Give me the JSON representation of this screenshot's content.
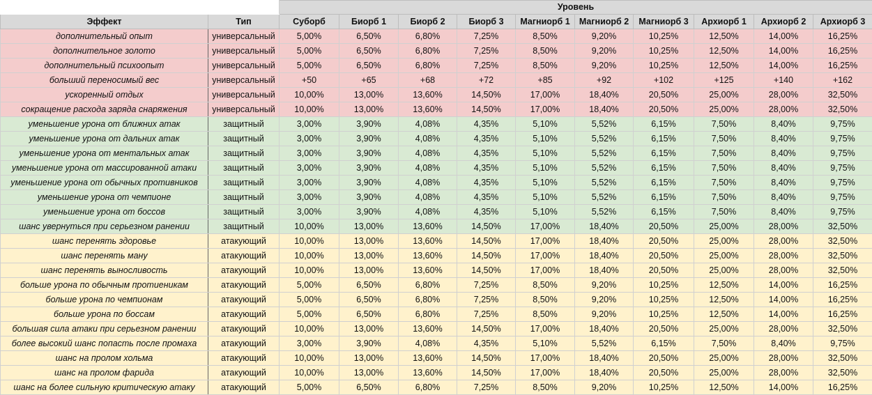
{
  "header": {
    "level_title": "Уровень",
    "effect_col": "Эффект",
    "type_col": "Тип",
    "levels": [
      "Суборб",
      "Биорб 1",
      "Биорб 2",
      "Биорб 3",
      "Магниорб 1",
      "Магниорб 2",
      "Магниорб 3",
      "Архиорб 1",
      "Архиорб 2",
      "Архиорб 3"
    ]
  },
  "colors": {
    "universal": "#f4cccc",
    "defensive": "#d9ead3",
    "attack": "#fff2cc",
    "header": "#d9d9d9"
  },
  "rows": [
    {
      "group": "universal",
      "effect": "дополнительный опыт",
      "type": "универсальный",
      "values": [
        "5,00%",
        "6,50%",
        "6,80%",
        "7,25%",
        "8,50%",
        "9,20%",
        "10,25%",
        "12,50%",
        "14,00%",
        "16,25%"
      ]
    },
    {
      "group": "universal",
      "effect": "дополнительное золото",
      "type": "универсальный",
      "values": [
        "5,00%",
        "6,50%",
        "6,80%",
        "7,25%",
        "8,50%",
        "9,20%",
        "10,25%",
        "12,50%",
        "14,00%",
        "16,25%"
      ]
    },
    {
      "group": "universal",
      "effect": "дополнительный психоопыт",
      "type": "универсальный",
      "values": [
        "5,00%",
        "6,50%",
        "6,80%",
        "7,25%",
        "8,50%",
        "9,20%",
        "10,25%",
        "12,50%",
        "14,00%",
        "16,25%"
      ]
    },
    {
      "group": "universal",
      "effect": "больший переносимый вес",
      "type": "универсальный",
      "values": [
        "+50",
        "+65",
        "+68",
        "+72",
        "+85",
        "+92",
        "+102",
        "+125",
        "+140",
        "+162"
      ]
    },
    {
      "group": "universal",
      "effect": "ускоренный отдых",
      "type": "универсальный",
      "values": [
        "10,00%",
        "13,00%",
        "13,60%",
        "14,50%",
        "17,00%",
        "18,40%",
        "20,50%",
        "25,00%",
        "28,00%",
        "32,50%"
      ]
    },
    {
      "group": "universal",
      "effect": "сокращение расхода заряда снаряжения",
      "type": "универсальный",
      "values": [
        "10,00%",
        "13,00%",
        "13,60%",
        "14,50%",
        "17,00%",
        "18,40%",
        "20,50%",
        "25,00%",
        "28,00%",
        "32,50%"
      ]
    },
    {
      "group": "defensive",
      "effect": "уменьшение урона от ближних атак",
      "type": "защитный",
      "values": [
        "3,00%",
        "3,90%",
        "4,08%",
        "4,35%",
        "5,10%",
        "5,52%",
        "6,15%",
        "7,50%",
        "8,40%",
        "9,75%"
      ]
    },
    {
      "group": "defensive",
      "effect": "уменьшение урона от дальних атак",
      "type": "защитный",
      "values": [
        "3,00%",
        "3,90%",
        "4,08%",
        "4,35%",
        "5,10%",
        "5,52%",
        "6,15%",
        "7,50%",
        "8,40%",
        "9,75%"
      ]
    },
    {
      "group": "defensive",
      "effect": "уменьшение урона от ментальных атак",
      "type": "защитный",
      "values": [
        "3,00%",
        "3,90%",
        "4,08%",
        "4,35%",
        "5,10%",
        "5,52%",
        "6,15%",
        "7,50%",
        "8,40%",
        "9,75%"
      ]
    },
    {
      "group": "defensive",
      "effect": "уменьшение урона от массированной атаки",
      "type": "защитный",
      "values": [
        "3,00%",
        "3,90%",
        "4,08%",
        "4,35%",
        "5,10%",
        "5,52%",
        "6,15%",
        "7,50%",
        "8,40%",
        "9,75%"
      ]
    },
    {
      "group": "defensive",
      "effect": "уменьшение урона от обычных противников",
      "type": "защитный",
      "values": [
        "3,00%",
        "3,90%",
        "4,08%",
        "4,35%",
        "5,10%",
        "5,52%",
        "6,15%",
        "7,50%",
        "8,40%",
        "9,75%"
      ]
    },
    {
      "group": "defensive",
      "effect": "уменьшение урона от чемпионе",
      "type": "защитный",
      "values": [
        "3,00%",
        "3,90%",
        "4,08%",
        "4,35%",
        "5,10%",
        "5,52%",
        "6,15%",
        "7,50%",
        "8,40%",
        "9,75%"
      ]
    },
    {
      "group": "defensive",
      "effect": "уменьшение урона от боссов",
      "type": "защитный",
      "values": [
        "3,00%",
        "3,90%",
        "4,08%",
        "4,35%",
        "5,10%",
        "5,52%",
        "6,15%",
        "7,50%",
        "8,40%",
        "9,75%"
      ]
    },
    {
      "group": "defensive",
      "effect": "шанс увернуться при серьезном ранении",
      "type": "защитный",
      "values": [
        "10,00%",
        "13,00%",
        "13,60%",
        "14,50%",
        "17,00%",
        "18,40%",
        "20,50%",
        "25,00%",
        "28,00%",
        "32,50%"
      ]
    },
    {
      "group": "attack",
      "effect": "шанс перенять здоровье",
      "type": "атакующий",
      "values": [
        "10,00%",
        "13,00%",
        "13,60%",
        "14,50%",
        "17,00%",
        "18,40%",
        "20,50%",
        "25,00%",
        "28,00%",
        "32,50%"
      ]
    },
    {
      "group": "attack",
      "effect": "шанс перенять ману",
      "type": "атакующий",
      "values": [
        "10,00%",
        "13,00%",
        "13,60%",
        "14,50%",
        "17,00%",
        "18,40%",
        "20,50%",
        "25,00%",
        "28,00%",
        "32,50%"
      ]
    },
    {
      "group": "attack",
      "effect": "шанс перенять выносливость",
      "type": "атакующий",
      "values": [
        "10,00%",
        "13,00%",
        "13,60%",
        "14,50%",
        "17,00%",
        "18,40%",
        "20,50%",
        "25,00%",
        "28,00%",
        "32,50%"
      ]
    },
    {
      "group": "attack",
      "effect": "больше урона по обычным протиеникам",
      "type": "атакующий",
      "values": [
        "5,00%",
        "6,50%",
        "6,80%",
        "7,25%",
        "8,50%",
        "9,20%",
        "10,25%",
        "12,50%",
        "14,00%",
        "16,25%"
      ]
    },
    {
      "group": "attack",
      "effect": "больше урона по чемпионам",
      "type": "атакующий",
      "values": [
        "5,00%",
        "6,50%",
        "6,80%",
        "7,25%",
        "8,50%",
        "9,20%",
        "10,25%",
        "12,50%",
        "14,00%",
        "16,25%"
      ]
    },
    {
      "group": "attack",
      "effect": "больше урона по боссам",
      "type": "атакующий",
      "values": [
        "5,00%",
        "6,50%",
        "6,80%",
        "7,25%",
        "8,50%",
        "9,20%",
        "10,25%",
        "12,50%",
        "14,00%",
        "16,25%"
      ]
    },
    {
      "group": "attack",
      "effect": "большая сила атаки при серьезном ранении",
      "type": "атакующий",
      "values": [
        "10,00%",
        "13,00%",
        "13,60%",
        "14,50%",
        "17,00%",
        "18,40%",
        "20,50%",
        "25,00%",
        "28,00%",
        "32,50%"
      ]
    },
    {
      "group": "attack",
      "effect": "более высокий шанс попасть после промаха",
      "type": "атакующий",
      "values": [
        "3,00%",
        "3,90%",
        "4,08%",
        "4,35%",
        "5,10%",
        "5,52%",
        "6,15%",
        "7,50%",
        "8,40%",
        "9,75%"
      ]
    },
    {
      "group": "attack",
      "effect": "шанс на пролом хольма",
      "type": "атакующий",
      "values": [
        "10,00%",
        "13,00%",
        "13,60%",
        "14,50%",
        "17,00%",
        "18,40%",
        "20,50%",
        "25,00%",
        "28,00%",
        "32,50%"
      ]
    },
    {
      "group": "attack",
      "effect": "шанс на пролом фарида",
      "type": "атакующий",
      "values": [
        "10,00%",
        "13,00%",
        "13,60%",
        "14,50%",
        "17,00%",
        "18,40%",
        "20,50%",
        "25,00%",
        "28,00%",
        "32,50%"
      ]
    },
    {
      "group": "attack",
      "effect": "шанс на более сильную критическую атаку",
      "type": "атакующий",
      "values": [
        "5,00%",
        "6,50%",
        "6,80%",
        "7,25%",
        "8,50%",
        "9,20%",
        "10,25%",
        "12,50%",
        "14,00%",
        "16,25%"
      ]
    }
  ]
}
